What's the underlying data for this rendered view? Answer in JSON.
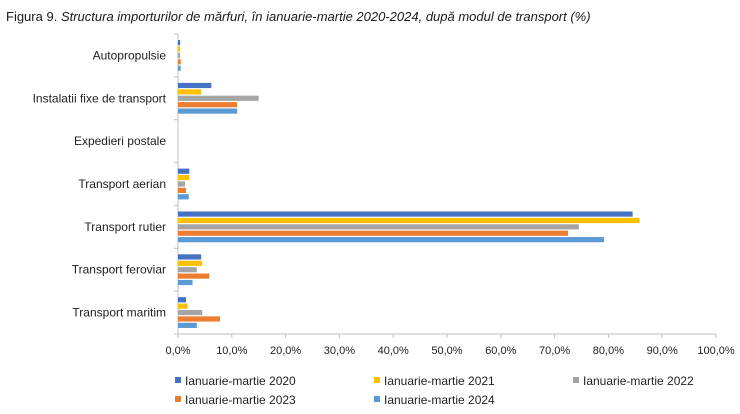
{
  "title_prefix": "Figura 9.",
  "title_main": "Structura importurilor de mărfuri, în ianuarie-martie 2020-2024, după modul de transport (%)",
  "chart_data": {
    "type": "bar",
    "orientation": "horizontal",
    "categories": [
      "Autopropulsie",
      "Instalatii fixe de transport",
      "Expedieri postale",
      "Transport aerian",
      "Transport rutier",
      "Transport feroviar",
      "Transport maritim"
    ],
    "series": [
      {
        "name": "Ianuarie-martie 2020",
        "color": "#4472C4",
        "values": [
          0.4,
          6.2,
          0.0,
          2.1,
          84.5,
          4.3,
          1.5
        ]
      },
      {
        "name": "Ianuarie-martie 2021",
        "color": "#FFC000",
        "values": [
          0.4,
          4.3,
          0.0,
          2.1,
          85.8,
          4.5,
          1.8
        ]
      },
      {
        "name": "Ianuarie-martie 2022",
        "color": "#A5A5A5",
        "values": [
          0.4,
          15.0,
          0.0,
          1.3,
          74.5,
          3.5,
          4.5
        ]
      },
      {
        "name": "Ianuarie-martie 2023",
        "color": "#ED7D31",
        "values": [
          0.5,
          11.0,
          0.0,
          1.5,
          72.5,
          5.8,
          7.8
        ]
      },
      {
        "name": "Ianuarie-martie 2024",
        "color": "#5B9BD5",
        "values": [
          0.5,
          11.0,
          0.0,
          2.0,
          79.2,
          2.7,
          3.5
        ]
      }
    ],
    "xlim": [
      0,
      100
    ],
    "x_ticks": [
      "0,0%",
      "10,0%",
      "20,0%",
      "30,0%",
      "40,0%",
      "50,0%",
      "60,0%",
      "70,0%",
      "80,0%",
      "90,0%",
      "100,0%"
    ],
    "grid": false,
    "legend_position": "bottom"
  }
}
